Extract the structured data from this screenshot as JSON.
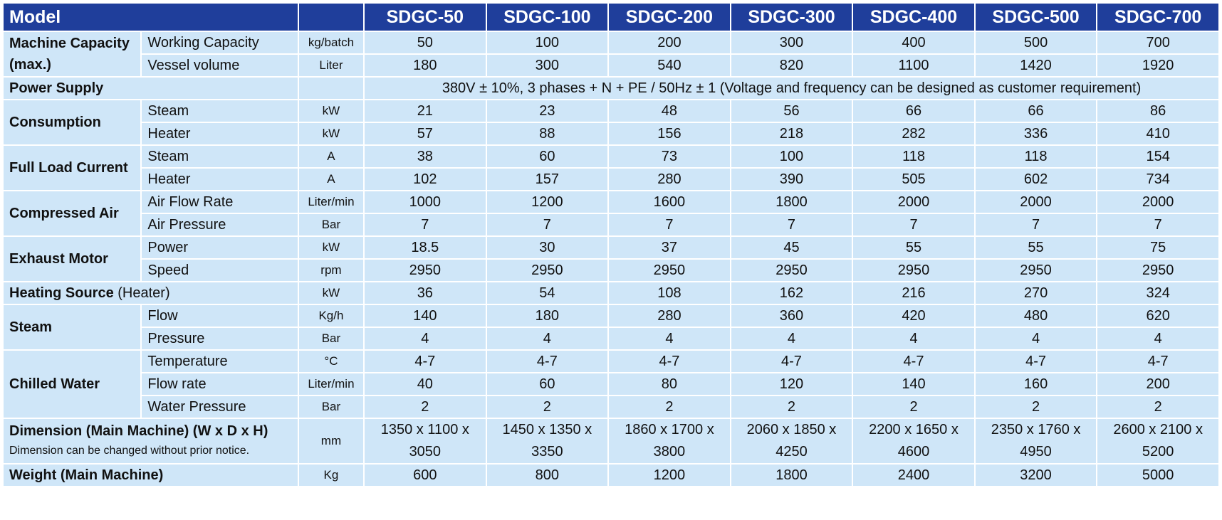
{
  "header": {
    "model_label": "Model",
    "models": [
      "SDGC-50",
      "SDGC-100",
      "SDGC-200",
      "SDGC-300",
      "SDGC-400",
      "SDGC-500",
      "SDGC-700"
    ]
  },
  "rows": {
    "capacity": {
      "group": "Machine Capacity (max.)",
      "working": {
        "label": "Working Capacity",
        "unit": "kg/batch",
        "values": [
          "50",
          "100",
          "200",
          "300",
          "400",
          "500",
          "700"
        ]
      },
      "vessel": {
        "label": "Vessel volume",
        "unit": "Liter",
        "values": [
          "180",
          "300",
          "540",
          "820",
          "1100",
          "1420",
          "1920"
        ]
      }
    },
    "power_supply": {
      "group": "Power Supply",
      "value": "380V ± 10%, 3 phases + N + PE / 50Hz ± 1 (Voltage and frequency can be designed as customer requirement)"
    },
    "consumption": {
      "group": "Consumption",
      "steam": {
        "label": "Steam",
        "unit": "kW",
        "values": [
          "21",
          "23",
          "48",
          "56",
          "66",
          "66",
          "86"
        ]
      },
      "heater": {
        "label": "Heater",
        "unit": "kW",
        "values": [
          "57",
          "88",
          "156",
          "218",
          "282",
          "336",
          "410"
        ]
      }
    },
    "current": {
      "group": "Full Load Current",
      "steam": {
        "label": "Steam",
        "unit": "A",
        "values": [
          "38",
          "60",
          "73",
          "100",
          "118",
          "118",
          "154"
        ]
      },
      "heater": {
        "label": "Heater",
        "unit": "A",
        "values": [
          "102",
          "157",
          "280",
          "390",
          "505",
          "602",
          "734"
        ]
      }
    },
    "air": {
      "group": "Compressed Air",
      "flow": {
        "label": "Air Flow Rate",
        "unit": "Liter/min",
        "values": [
          "1000",
          "1200",
          "1600",
          "1800",
          "2000",
          "2000",
          "2000"
        ]
      },
      "pressure": {
        "label": "Air Pressure",
        "unit": "Bar",
        "values": [
          "7",
          "7",
          "7",
          "7",
          "7",
          "7",
          "7"
        ]
      }
    },
    "exhaust": {
      "group": "Exhaust Motor",
      "power": {
        "label": "Power",
        "unit": "kW",
        "values": [
          "18.5",
          "30",
          "37",
          "45",
          "55",
          "55",
          "75"
        ]
      },
      "speed": {
        "label": "Speed",
        "unit": "rpm",
        "values": [
          "2950",
          "2950",
          "2950",
          "2950",
          "2950",
          "2950",
          "2950"
        ]
      }
    },
    "heating": {
      "group_bold": "Heating Source",
      "group_normal": "(Heater)",
      "unit": "kW",
      "values": [
        "36",
        "54",
        "108",
        "162",
        "216",
        "270",
        "324"
      ]
    },
    "steam": {
      "group": "Steam",
      "flow": {
        "label": "Flow",
        "unit": "Kg/h",
        "values": [
          "140",
          "180",
          "280",
          "360",
          "420",
          "480",
          "620"
        ]
      },
      "pressure": {
        "label": "Pressure",
        "unit": "Bar",
        "values": [
          "4",
          "4",
          "4",
          "4",
          "4",
          "4",
          "4"
        ]
      }
    },
    "chilled": {
      "group": "Chilled Water",
      "temperature": {
        "label": "Temperature",
        "unit": "°C",
        "values": [
          "4-7",
          "4-7",
          "4-7",
          "4-7",
          "4-7",
          "4-7",
          "4-7"
        ]
      },
      "flow": {
        "label": "Flow rate",
        "unit": "Liter/min",
        "values": [
          "40",
          "60",
          "80",
          "120",
          "140",
          "160",
          "200"
        ]
      },
      "pressure": {
        "label": "Water Pressure",
        "unit": "Bar",
        "values": [
          "2",
          "2",
          "2",
          "2",
          "2",
          "2",
          "2"
        ]
      }
    },
    "dimension": {
      "group": "Dimension (Main Machine) (W x D x H)",
      "note": "Dimension can be changed without prior notice.",
      "unit": "mm",
      "values_line1": [
        "1350 x 1100 x",
        "1450 x 1350 x",
        "1860 x 1700 x",
        "2060 x 1850 x",
        "2200 x 1650 x",
        "2350 x 1760 x",
        "2600 x 2100 x"
      ],
      "values_line2": [
        "3050",
        "3350",
        "3800",
        "4250",
        "4600",
        "4950",
        "5200"
      ]
    },
    "weight": {
      "group": "Weight (Main Machine)",
      "unit": "Kg",
      "values": [
        "600",
        "800",
        "1200",
        "1800",
        "2400",
        "3200",
        "5000"
      ]
    }
  }
}
